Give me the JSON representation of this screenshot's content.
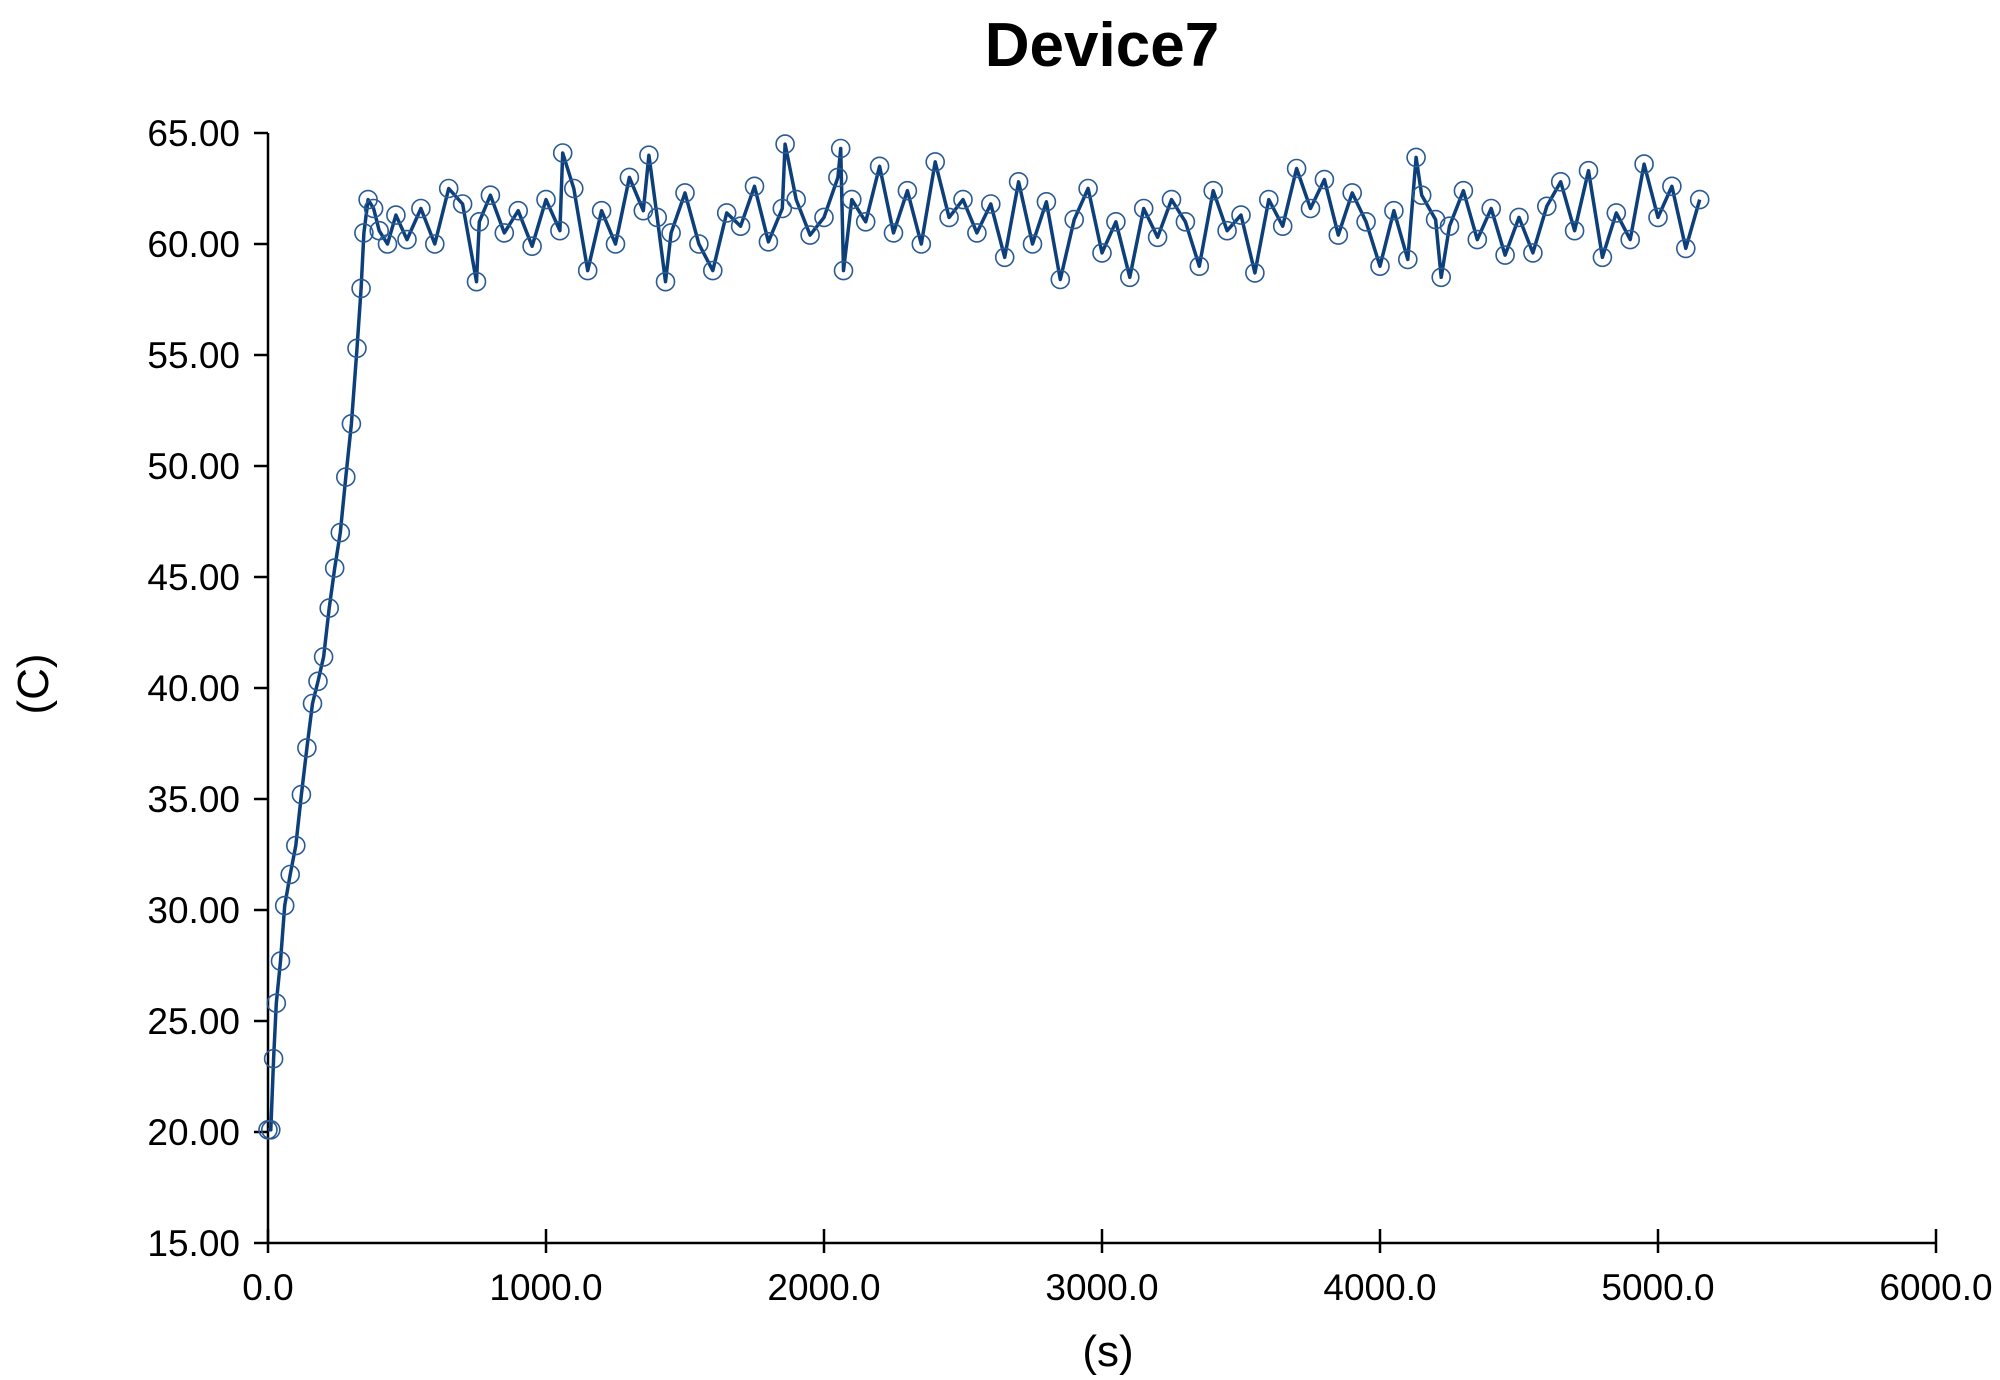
{
  "chart_data": {
    "type": "line",
    "title": "Device7",
    "xlabel": "(s)",
    "ylabel": "(C)",
    "xlim": [
      0,
      6000
    ],
    "ylim": [
      15,
      65
    ],
    "x_ticks": [
      "0.0",
      "1000.0",
      "2000.0",
      "3000.0",
      "4000.0",
      "5000.0",
      "6000.0"
    ],
    "y_ticks": [
      "15.00",
      "20.00",
      "25.00",
      "30.00",
      "35.00",
      "40.00",
      "45.00",
      "50.00",
      "55.00",
      "60.00",
      "65.00"
    ],
    "grid": false,
    "legend": "none",
    "series_color": "#0d3f7a",
    "marker": "open-circle",
    "series": [
      {
        "x": [
          0,
          10,
          20,
          30,
          45,
          60,
          80,
          100,
          120,
          140,
          160,
          180,
          200,
          220,
          240,
          260,
          280,
          300,
          320,
          335,
          345,
          360,
          380,
          400,
          430,
          460,
          500,
          550,
          600,
          650,
          700,
          750,
          760,
          800,
          850,
          900,
          950,
          1000,
          1050,
          1060,
          1100,
          1150,
          1200,
          1250,
          1300,
          1350,
          1370,
          1400,
          1430,
          1450,
          1500,
          1550,
          1600,
          1650,
          1700,
          1750,
          1800,
          1850,
          1860,
          1900,
          1950,
          2000,
          2050,
          2060,
          2070,
          2100,
          2150,
          2200,
          2250,
          2300,
          2350,
          2400,
          2450,
          2500,
          2550,
          2600,
          2650,
          2700,
          2750,
          2800,
          2850,
          2900,
          2950,
          3000,
          3050,
          3100,
          3150,
          3200,
          3250,
          3300,
          3350,
          3400,
          3450,
          3500,
          3550,
          3600,
          3650,
          3700,
          3750,
          3800,
          3850,
          3900,
          3950,
          4000,
          4050,
          4100,
          4130,
          4150,
          4200,
          4220,
          4250,
          4300,
          4350,
          4400,
          4450,
          4500,
          4550,
          4600,
          4650,
          4700,
          4750,
          4800,
          4850,
          4900,
          4950,
          5000,
          5050,
          5100,
          5150
        ],
        "y": [
          20.1,
          20.1,
          23.3,
          25.8,
          27.7,
          30.2,
          31.6,
          32.9,
          35.2,
          37.3,
          39.3,
          40.3,
          41.4,
          43.6,
          45.4,
          47.0,
          49.5,
          51.9,
          55.3,
          58.0,
          60.5,
          62.0,
          61.6,
          60.6,
          60.0,
          61.3,
          60.2,
          61.6,
          60.0,
          62.5,
          61.8,
          58.3,
          61.0,
          62.2,
          60.5,
          61.5,
          59.9,
          62.0,
          60.6,
          64.1,
          62.5,
          58.8,
          61.5,
          60.0,
          63.0,
          61.5,
          64.0,
          61.2,
          58.3,
          60.5,
          62.3,
          60.0,
          58.8,
          61.4,
          60.8,
          62.6,
          60.1,
          61.6,
          64.5,
          62.0,
          60.4,
          61.2,
          63.0,
          64.3,
          58.8,
          62.0,
          61.0,
          63.5,
          60.5,
          62.4,
          60.0,
          63.7,
          61.2,
          62.0,
          60.5,
          61.8,
          59.4,
          62.8,
          60.0,
          61.9,
          58.4,
          61.1,
          62.5,
          59.6,
          61.0,
          58.5,
          61.6,
          60.3,
          62.0,
          61.0,
          59.0,
          62.4,
          60.6,
          61.3,
          58.7,
          62.0,
          60.8,
          63.4,
          61.6,
          62.9,
          60.4,
          62.3,
          61.0,
          59.0,
          61.5,
          59.3,
          63.9,
          62.2,
          61.1,
          58.5,
          60.8,
          62.4,
          60.2,
          61.6,
          59.5,
          61.2,
          59.6,
          61.7,
          62.8,
          60.6,
          63.3,
          59.4,
          61.4,
          60.2,
          63.6,
          61.2,
          62.6,
          59.8,
          62.0
        ]
      }
    ]
  }
}
